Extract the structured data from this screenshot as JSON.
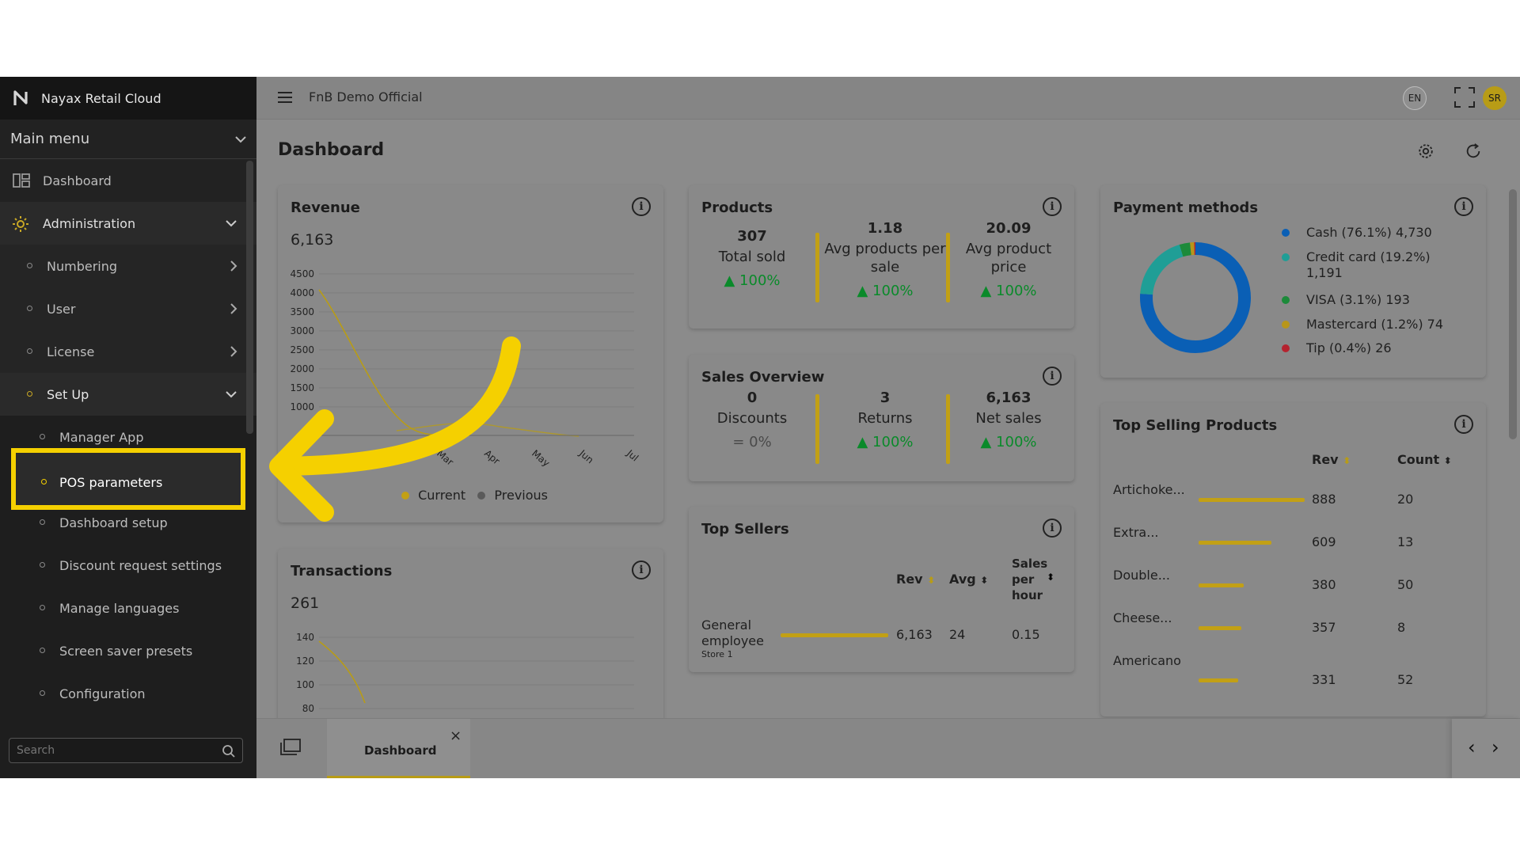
{
  "app": {
    "title": "Nayax Retail Cloud",
    "store_name": "FnB Demo Official",
    "language": "EN",
    "user_initials": "SR"
  },
  "sidebar": {
    "main_menu_label": "Main menu",
    "items": {
      "dashboard": "Dashboard",
      "administration": "Administration",
      "numbering": "Numbering",
      "user": "User",
      "license": "License",
      "setup": "Set Up",
      "manager_app": "Manager App",
      "pos_parameters": "POS parameters",
      "dashboard_setup": "Dashboard setup",
      "discount_request_settings": "Discount request settings",
      "manage_languages": "Manage languages",
      "screen_saver_presets": "Screen saver presets",
      "configuration": "Configuration"
    },
    "search_placeholder": "Search"
  },
  "page": {
    "title": "Dashboard"
  },
  "revenue": {
    "title": "Revenue",
    "total": "6,163",
    "y_ticks": [
      "4500",
      "4000",
      "3500",
      "3000",
      "2500",
      "2000",
      "1500",
      "1000",
      "0"
    ],
    "x_ticks": [
      "0",
      "Mar",
      "Apr",
      "May",
      "Jun",
      "Jul"
    ],
    "legend_current": "Current",
    "legend_previous": "Previous"
  },
  "transactions": {
    "title": "Transactions",
    "total": "261",
    "y_ticks": [
      "140",
      "120",
      "100",
      "80"
    ]
  },
  "products": {
    "title": "Products",
    "total_sold_value": "307",
    "total_sold_label": "Total sold",
    "total_sold_change": "100%",
    "avg_per_sale_value": "1.18",
    "avg_per_sale_label": "Avg products per sale",
    "avg_per_sale_change": "100%",
    "avg_price_value": "20.09",
    "avg_price_label": "Avg product price",
    "avg_price_change": "100%"
  },
  "sales_overview": {
    "title": "Sales Overview",
    "discounts_value": "0",
    "discounts_label": "Discounts",
    "discounts_change": "0%",
    "returns_value": "3",
    "returns_label": "Returns",
    "returns_change": "100%",
    "net_value": "6,163",
    "net_label": "Net sales",
    "net_change": "100%"
  },
  "top_sellers": {
    "title": "Top Sellers",
    "headers": {
      "rev": "Rev",
      "avg": "Avg",
      "sales_per_hour": "Sales per hour"
    },
    "rows": [
      {
        "name": "General employee",
        "store": "Store 1",
        "rev": "6,163",
        "avg": "24",
        "sph": "0.15"
      }
    ]
  },
  "payment_methods": {
    "title": "Payment methods",
    "items": [
      {
        "label": "Cash (76.1%) 4,730",
        "color": "#0a5fb5"
      },
      {
        "label": "Credit card (19.2%) 1,191",
        "color": "#1f9e96"
      },
      {
        "label": "VISA (3.1%) 193",
        "color": "#1c8a3a"
      },
      {
        "label": "Mastercard (1.2%) 74",
        "color": "#b8961a"
      },
      {
        "label": "Tip (0.4%) 26",
        "color": "#b5232f"
      }
    ],
    "shares": [
      76.1,
      19.2,
      3.1,
      1.2,
      0.4
    ]
  },
  "top_selling_products": {
    "title": "Top Selling Products",
    "headers": {
      "rev": "Rev",
      "count": "Count"
    },
    "rows": [
      {
        "name": "Artichoke...",
        "rev": "888",
        "count": "20",
        "rev_value": 888
      },
      {
        "name": "Extra...",
        "rev": "609",
        "count": "13",
        "rev_value": 609
      },
      {
        "name": "Double...",
        "rev": "380",
        "count": "50",
        "rev_value": 380
      },
      {
        "name": "Cheese...",
        "rev": "357",
        "count": "8",
        "rev_value": 357
      },
      {
        "name": "Americano",
        "rev": "331",
        "count": "52",
        "rev_value": 331
      }
    ]
  },
  "tabs": {
    "dashboard": "Dashboard",
    "close": "×"
  },
  "colors": {
    "accent": "#f5d000",
    "sidebar_bg": "#1e1e1e",
    "positive": "#0a8a2a"
  }
}
